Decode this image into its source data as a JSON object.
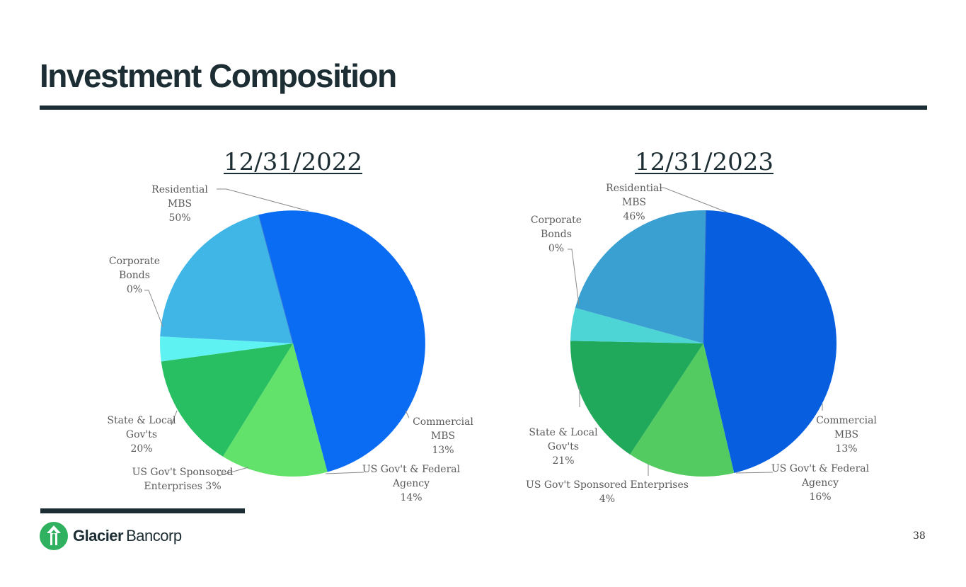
{
  "slide": {
    "title": "Investment Composition",
    "page_number": "38"
  },
  "logo": {
    "word1": "Glacier",
    "word2": "Bancorp"
  },
  "chart_data": [
    {
      "type": "pie",
      "title": "12/31/2022",
      "slices": [
        {
          "name": "Residential MBS",
          "value": 50,
          "label": [
            "Residential",
            "MBS",
            "50%"
          ],
          "color": "#0a6cf3"
        },
        {
          "name": "Commercial MBS",
          "value": 13,
          "label": [
            "Commercial",
            "MBS",
            "13%"
          ],
          "color": "#63e26b"
        },
        {
          "name": "US Gov't & Federal Agency",
          "value": 14,
          "label": [
            "US Gov't & Federal",
            "Agency",
            "14%"
          ],
          "color": "#27bf61"
        },
        {
          "name": "US Gov't Sponsored Enterprises",
          "value": 3,
          "label": [
            "US Gov't Sponsored",
            "Enterprises 3%"
          ],
          "color": "#5ff2f2"
        },
        {
          "name": "State & Local Gov'ts",
          "value": 20,
          "label": [
            "State & Local",
            "Gov'ts",
            "20%"
          ],
          "color": "#3fb6e6"
        },
        {
          "name": "Corporate Bonds",
          "value": 0,
          "label": [
            "Corporate",
            "Bonds",
            "0%"
          ],
          "color": "#3f7fd8"
        }
      ]
    },
    {
      "type": "pie",
      "title": "12/31/2023",
      "slices": [
        {
          "name": "Residential MBS",
          "value": 46,
          "label": [
            "Residential",
            "MBS",
            "46%"
          ],
          "color": "#075fe0"
        },
        {
          "name": "Commercial MBS",
          "value": 13,
          "label": [
            "Commercial",
            "MBS",
            "13%"
          ],
          "color": "#54cb60"
        },
        {
          "name": "US Gov't & Federal Agency",
          "value": 16,
          "label": [
            "US Gov't & Federal",
            "Agency",
            "16%"
          ],
          "color": "#20a95a"
        },
        {
          "name": "US Gov't Sponsored Enterprises",
          "value": 4,
          "label": [
            "US Gov't Sponsored Enterprises",
            "4%"
          ],
          "color": "#4dd5d6"
        },
        {
          "name": "State & Local Gov'ts",
          "value": 21,
          "label": [
            "State & Local",
            "Gov'ts",
            "21%"
          ],
          "color": "#3aa0d2"
        },
        {
          "name": "Corporate Bonds",
          "value": 0,
          "label": [
            "Corporate",
            "Bonds",
            "0%"
          ],
          "color": "#3a73cc"
        }
      ]
    }
  ]
}
